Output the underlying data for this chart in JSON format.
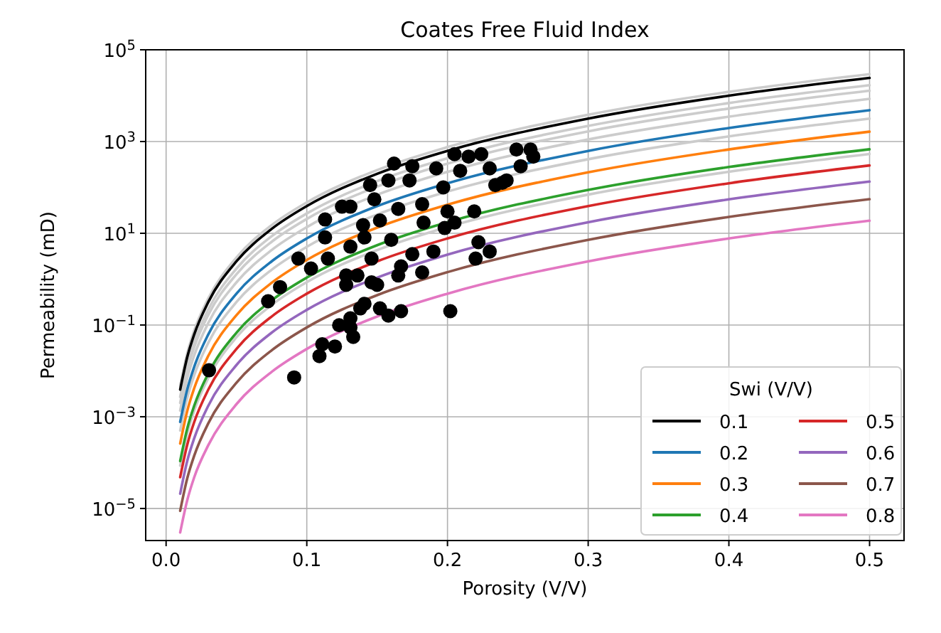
{
  "chart_data": {
    "type": "line",
    "title": "Coates Free Fluid Index",
    "xlabel": "Porosity (V/V)",
    "ylabel": "Permeability (mD)",
    "legend_title": "Swi (V/V)",
    "x": [
      0.01,
      0.015,
      0.02,
      0.03,
      0.05,
      0.075,
      0.1,
      0.15,
      0.2,
      0.3,
      0.4,
      0.5
    ],
    "xlim": [
      -0.0145,
      0.5245
    ],
    "xticks": [
      {
        "value": 0,
        "label": "0.0"
      },
      0.1,
      0.2,
      0.3,
      0.4,
      0.5
    ],
    "ylim": [
      2e-06,
      100000
    ],
    "log": "y",
    "yticks": [
      {
        "value": 1e-05,
        "label": "10$^{−5}$"
      },
      {
        "value": 0.001,
        "label": "10$^{−3}$"
      },
      {
        "value": 0.1,
        "label": "10$^{−1}$"
      },
      {
        "value": 10,
        "label": "10$^{1}$"
      },
      {
        "value": 1000,
        "label": "10$^{3}$"
      },
      {
        "value": 100000,
        "label": "10$^{5}$"
      }
    ],
    "grid": true,
    "legend": "bottom right",
    "line_style": "solid",
    "marker": "none",
    "series": [
      {
        "color": "#cccccc",
        "values": [
          0.0047,
          0.024,
          0.076,
          0.38,
          2.95,
          15,
          47,
          239,
          756,
          3830,
          12100,
          29500
        ]
      },
      {
        "color": "#cccccc",
        "values": [
          0.0027,
          0.0137,
          0.043,
          0.219,
          1.69,
          8.6,
          27,
          137,
          432,
          2190,
          6900,
          16900
        ]
      },
      {
        "color": "#cccccc",
        "values": [
          0.002,
          0.0104,
          0.033,
          0.167,
          1.28,
          6.5,
          20.5,
          104,
          329,
          1666,
          5240,
          12800
        ]
      },
      {
        "color": "#cccccc",
        "values": [
          0.00136,
          0.0069,
          0.0218,
          0.111,
          0.85,
          4.3,
          13.6,
          69,
          218,
          1107,
          3480,
          8530
        ]
      },
      {
        "color": "#cccccc",
        "values": [
          0.0005,
          0.00256,
          0.0081,
          0.041,
          0.316,
          1.6,
          5.06,
          25.6,
          81,
          411,
          1292,
          3160
        ]
      },
      {
        "color": "#cccccc",
        "values": [
          8.6e-05,
          0.00043,
          0.00137,
          0.007,
          0.054,
          0.272,
          0.86,
          4.3,
          13.7,
          69.6,
          219,
          536
        ]
      },
      {
        "name": "0.1",
        "color": "#000000",
        "values": [
          0.0039,
          0.0198,
          0.0625,
          0.317,
          2.44,
          12.4,
          39.1,
          198,
          625,
          3164,
          10000,
          24400
        ]
      },
      {
        "name": "0.2",
        "color": "#1f77b4",
        "values": [
          0.00077,
          0.0039,
          0.0123,
          0.0625,
          0.482,
          2.44,
          7.72,
          39.1,
          123,
          625,
          1975,
          4822
        ]
      },
      {
        "name": "0.3",
        "color": "#ff7f0e",
        "values": [
          0.00026,
          0.00133,
          0.0042,
          0.0213,
          0.164,
          0.831,
          2.62,
          13.3,
          42,
          213,
          672,
          1641
        ]
      },
      {
        "name": "0.4",
        "color": "#2ca02c",
        "values": [
          0.000108,
          0.00055,
          0.00174,
          0.0088,
          0.0678,
          0.343,
          1.08,
          5.49,
          17.4,
          87.9,
          278,
          678
        ]
      },
      {
        "name": "0.5",
        "color": "#d62728",
        "values": [
          4.8e-05,
          0.000244,
          0.00077,
          0.0039,
          0.0301,
          0.153,
          0.482,
          2.44,
          7.72,
          39.1,
          123,
          301
        ]
      },
      {
        "name": "0.6",
        "color": "#9467bd",
        "values": [
          2.1e-05,
          0.000108,
          0.00034,
          0.00174,
          0.0134,
          0.068,
          0.214,
          1.08,
          3.43,
          17.4,
          54.8,
          134
        ]
      },
      {
        "name": "0.7",
        "color": "#8c564b",
        "values": [
          8.9e-06,
          4.5e-05,
          0.000142,
          0.00072,
          0.0055,
          0.028,
          0.0886,
          0.448,
          1.42,
          7.18,
          22.7,
          55.4
        ]
      },
      {
        "name": "0.8",
        "color": "#e377c2",
        "values": [
          3e-06,
          1.5e-05,
          4.8e-05,
          0.00024,
          0.00188,
          0.0095,
          0.0301,
          0.153,
          0.482,
          2.44,
          7.71,
          18.8
        ]
      },
      {
        "type": "scatter",
        "marker": "circle",
        "color": "#000000",
        "x": [
          0.0305,
          0.091,
          0.0725,
          0.081,
          0.094,
          0.103,
          0.113,
          0.113,
          0.115,
          0.125,
          0.131,
          0.128,
          0.131,
          0.136,
          0.14,
          0.141,
          0.146,
          0.145,
          0.148,
          0.146,
          0.15,
          0.152,
          0.158,
          0.16,
          0.162,
          0.165,
          0.165,
          0.167,
          0.173,
          0.175,
          0.175,
          0.182,
          0.183,
          0.182,
          0.19,
          0.192,
          0.197,
          0.198,
          0.2,
          0.202,
          0.205,
          0.205,
          0.209,
          0.215,
          0.219,
          0.22,
          0.222,
          0.224,
          0.23,
          0.23,
          0.234,
          0.239,
          0.242,
          0.249,
          0.252,
          0.259,
          0.261,
          0.111,
          0.12,
          0.133,
          0.123,
          0.131,
          0.138,
          0.141,
          0.152,
          0.158,
          0.167,
          0.109,
          0.131,
          0.128
        ],
        "values": [
          0.0103,
          0.0072,
          0.33,
          0.67,
          2.8,
          1.7,
          20,
          8.1,
          2.8,
          38,
          38,
          1.2,
          5.1,
          1.2,
          15,
          8.1,
          2.8,
          112,
          55,
          0.85,
          0.75,
          19,
          142,
          7.2,
          330,
          34,
          1.2,
          1.9,
          142,
          290,
          3.5,
          43,
          17,
          1.4,
          4,
          260,
          100,
          13,
          30,
          0.2,
          530,
          17,
          230,
          470,
          30,
          2.8,
          6.4,
          530,
          4,
          260,
          112,
          126,
          142,
          670,
          290,
          670,
          470,
          0.038,
          0.034,
          0.055,
          0.099,
          0.14,
          0.23,
          0.29,
          0.23,
          0.16,
          0.2,
          0.021,
          0.088,
          0.75
        ]
      }
    ]
  }
}
